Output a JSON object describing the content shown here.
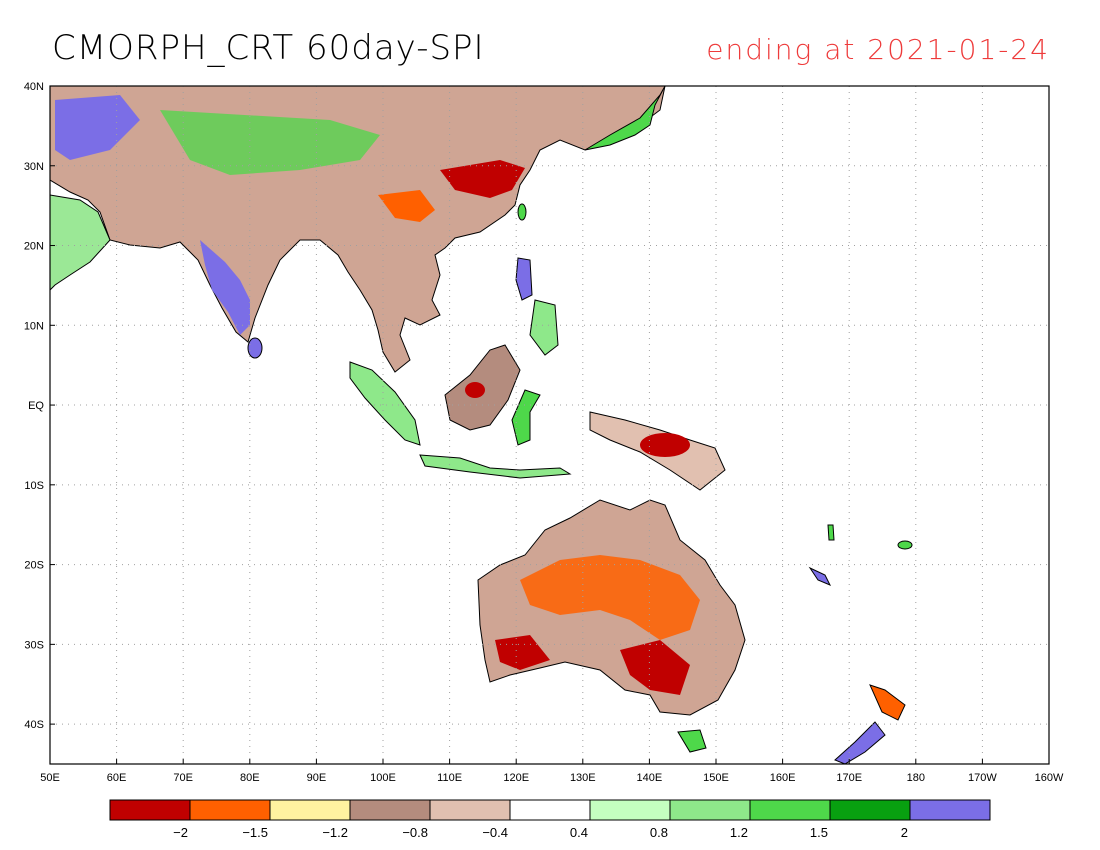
{
  "header": {
    "title": "CMORPH_CRT 60day-SPI",
    "subtitle": "ending at 2021-01-24"
  },
  "map": {
    "lon_labels": [
      "50E",
      "60E",
      "70E",
      "80E",
      "90E",
      "100E",
      "110E",
      "120E",
      "130E",
      "140E",
      "150E",
      "160E",
      "170E",
      "180",
      "170W",
      "160W"
    ],
    "lat_labels": [
      "40N",
      "30N",
      "20N",
      "10N",
      "EQ",
      "10S",
      "20S",
      "30S",
      "40S"
    ],
    "lon_range": [
      50,
      200
    ],
    "lat_range": [
      -45,
      40
    ],
    "grid": true
  },
  "legend": {
    "colors": [
      "#c00000",
      "#ff6000",
      "#fff3a0",
      "#b48c7e",
      "#e1c0b0",
      "#ffffff",
      "#c4ffc0",
      "#8ee88a",
      "#4ed84a",
      "#08a010",
      "#7b6ee6"
    ],
    "labels": [
      "-2",
      "-1.5",
      "-1.2",
      "-0.8",
      "-0.4",
      "0.4",
      "0.8",
      "1.2",
      "1.5",
      "2"
    ]
  }
}
